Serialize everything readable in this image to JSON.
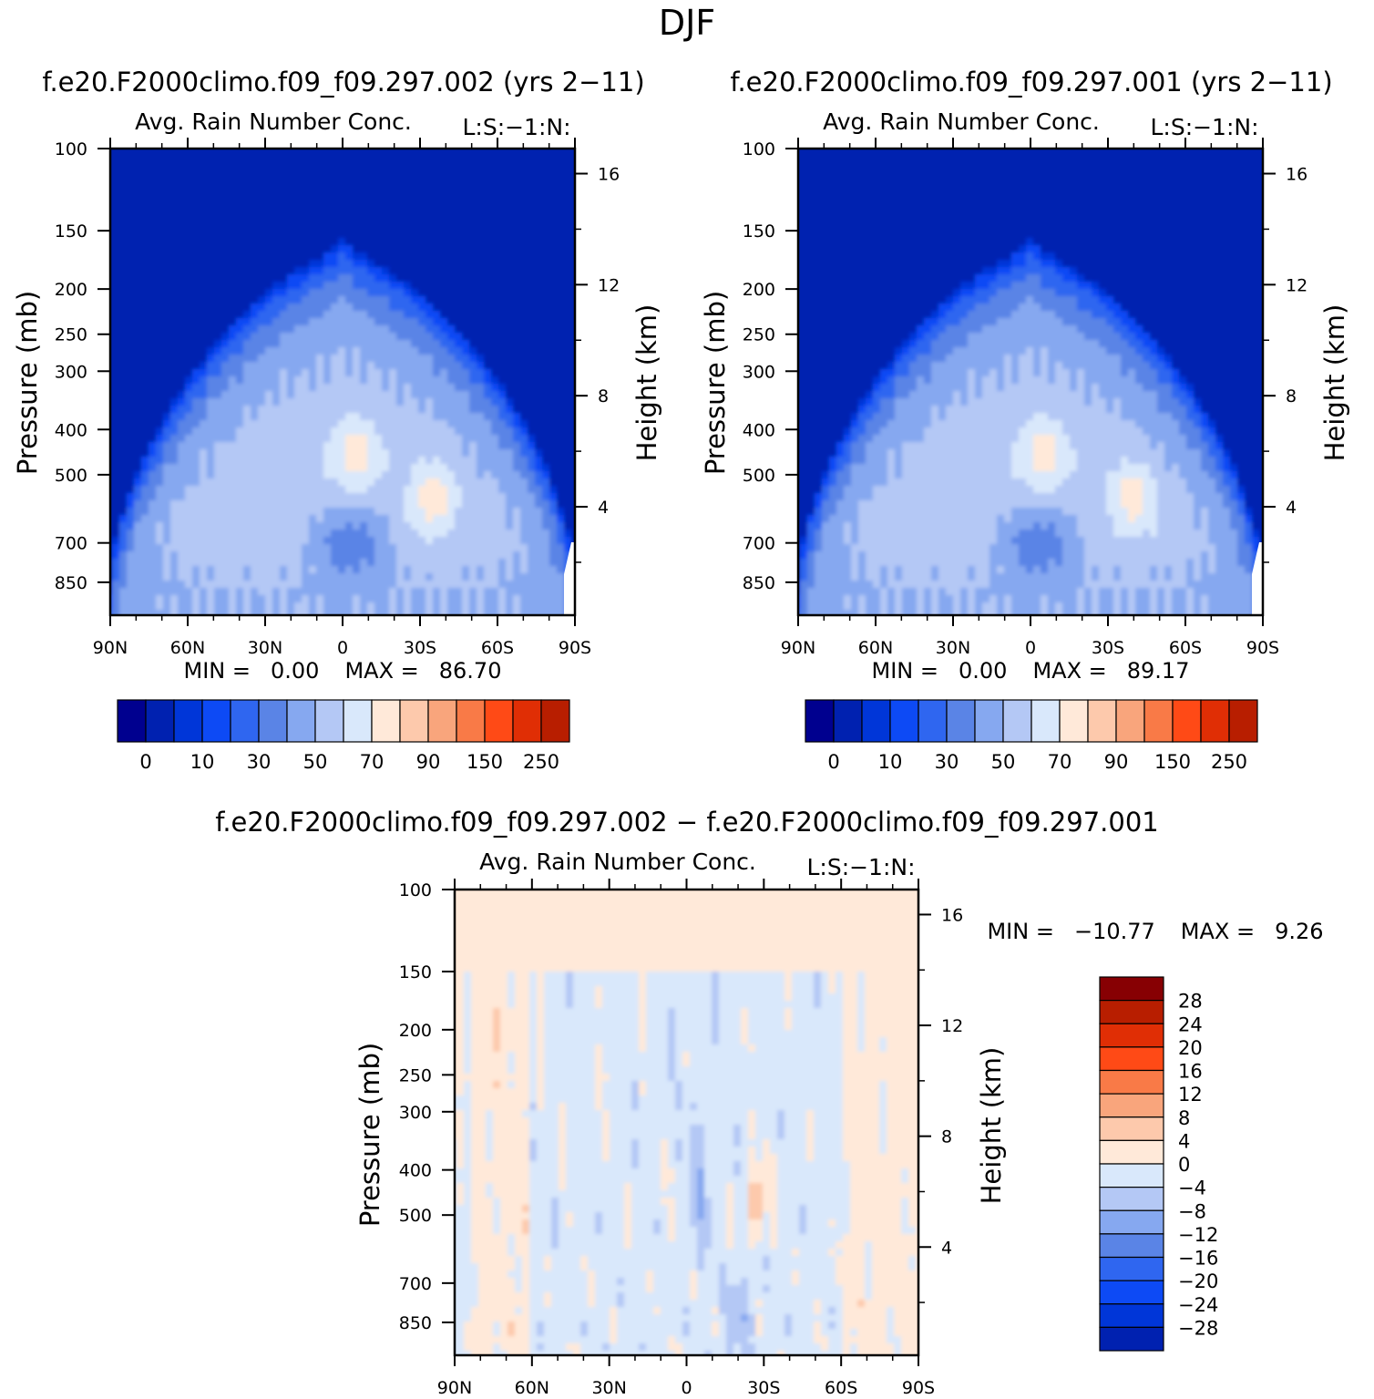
{
  "figure": {
    "title": "DJF",
    "diff_title": "f.e20.F2000climo.f09_f09.297.002 − f.e20.F2000climo.f09_f09.297.001"
  },
  "colors": {
    "abs_palette": [
      "#00008f",
      "#0021b0",
      "#0036d8",
      "#0d4af5",
      "#2f66f0",
      "#5a84e6",
      "#86a8f0",
      "#b4c8f5",
      "#d9e8fb",
      "#ffe9d9",
      "#fdc9ac",
      "#f9a57c",
      "#f97a47",
      "#ff4a16",
      "#e02e05",
      "#b81e00",
      "#870003"
    ],
    "diff_palette": [
      "#00008f",
      "#0021b0",
      "#0036d8",
      "#0d4af5",
      "#2f66f0",
      "#5a84e6",
      "#86a8f0",
      "#b4c8f5",
      "#d9e8fb",
      "#ffe9d9",
      "#fdc9ac",
      "#f9a57c",
      "#f97a47",
      "#ff4a16",
      "#e02e05",
      "#b81e00",
      "#870003"
    ]
  },
  "chart_data": [
    {
      "type": "heatmap",
      "title": "f.e20.F2000climo.f09_f09.297.002 (yrs 2−11)",
      "subtitle": "Avg. Rain Number Conc.",
      "units": "L:S:−1:N:",
      "ylabel": "Pressure (mb)",
      "y2label": "Height (km)",
      "xlabel": "",
      "xticks": [
        "90N",
        "60N",
        "30N",
        "0",
        "30S",
        "60S",
        "90S"
      ],
      "yticks": [
        "100",
        "150",
        "200",
        "250",
        "300",
        "400",
        "500",
        "700",
        "850"
      ],
      "y2ticks": [
        "16",
        "12",
        "8",
        "4"
      ],
      "ylim": [
        100,
        1000
      ],
      "ylog": true,
      "min_label": "MIN =",
      "min_value": "0.00",
      "max_label": "MAX =",
      "max_value": "86.70",
      "levels": [
        "0",
        "10",
        "30",
        "50",
        "70",
        "90",
        "150",
        "250"
      ],
      "features": {
        "top_height_km": 10.4,
        "warm_blobs": [
          {
            "lat": -5,
            "p": 450,
            "value": 70
          },
          {
            "lat": -35,
            "p": 560,
            "value": 70
          }
        ],
        "min_region": {
          "lat": -3,
          "p": 700
        }
      }
    },
    {
      "type": "heatmap",
      "title": "f.e20.F2000climo.f09_f09.297.001 (yrs 2−11)",
      "subtitle": "Avg. Rain Number Conc.",
      "units": "L:S:−1:N:",
      "ylabel": "Pressure (mb)",
      "y2label": "Height (km)",
      "xlabel": "",
      "xticks": [
        "90N",
        "60N",
        "30N",
        "0",
        "30S",
        "60S",
        "90S"
      ],
      "yticks": [
        "100",
        "150",
        "200",
        "250",
        "300",
        "400",
        "500",
        "700",
        "850"
      ],
      "y2ticks": [
        "16",
        "12",
        "8",
        "4"
      ],
      "ylim": [
        100,
        1000
      ],
      "ylog": true,
      "min_label": "MIN =",
      "min_value": "0.00",
      "max_label": "MAX =",
      "max_value": "89.17",
      "levels": [
        "0",
        "10",
        "30",
        "50",
        "70",
        "90",
        "150",
        "250"
      ],
      "features": {
        "top_height_km": 10.4,
        "warm_blobs": [
          {
            "lat": -5,
            "p": 450,
            "value": 70
          },
          {
            "lat": -40,
            "p": 560,
            "value": 70
          }
        ],
        "min_region": {
          "lat": -3,
          "p": 700
        }
      }
    },
    {
      "type": "heatmap",
      "title": "",
      "subtitle": "Avg. Rain Number Conc.",
      "units": "L:S:−1:N:",
      "ylabel": "Pressure (mb)",
      "y2label": "Height (km)",
      "xlabel": "",
      "xticks": [
        "90N",
        "60N",
        "30N",
        "0",
        "30S",
        "60S",
        "90S"
      ],
      "yticks": [
        "100",
        "150",
        "200",
        "250",
        "300",
        "400",
        "500",
        "700",
        "850"
      ],
      "y2ticks": [
        "16",
        "12",
        "8",
        "4"
      ],
      "ylim": [
        100,
        1000
      ],
      "ylog": true,
      "min_label": "MIN =",
      "min_value": "−10.77",
      "max_label": "MAX =",
      "max_value": "9.26",
      "levels": [
        "28",
        "24",
        "20",
        "16",
        "12",
        "8",
        "4",
        "0",
        "−4",
        "−8",
        "−12",
        "−16",
        "−20",
        "−24",
        "−28"
      ],
      "features": {
        "background": "0 to 4",
        "negative_region": {
          "lat_range": [
            -90,
            60
          ],
          "p_range": [
            150,
            1000
          ]
        }
      }
    }
  ]
}
